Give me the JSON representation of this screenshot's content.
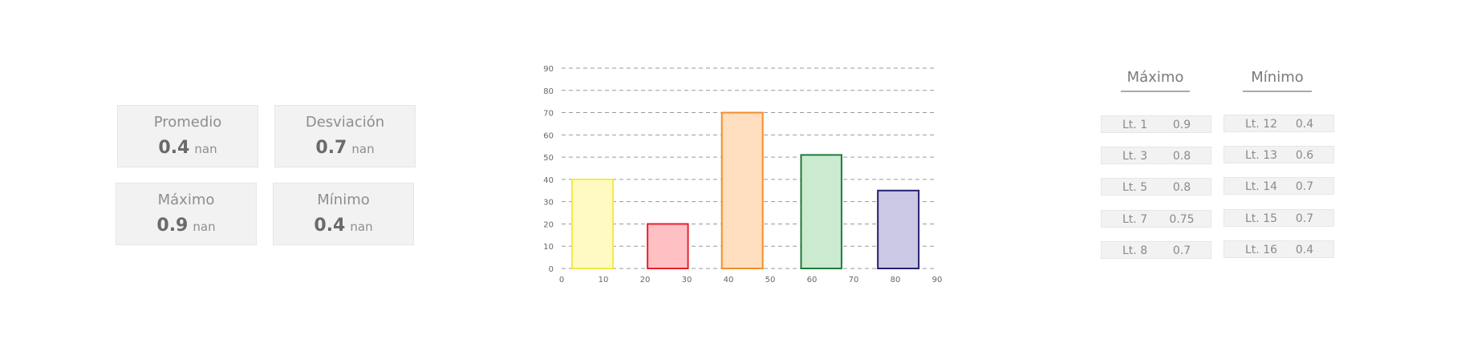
{
  "stats": [
    {
      "label": "Promedio",
      "value": "0.4",
      "unit": "nan"
    },
    {
      "label": "Desviación",
      "value": "0.7",
      "unit": "nan"
    },
    {
      "label": "Máximo",
      "value": "0.9",
      "unit": "nan"
    },
    {
      "label": "Mínimo",
      "value": "0.4",
      "unit": "nan"
    }
  ],
  "chart_data": {
    "type": "bar",
    "title": "",
    "xlabel": "",
    "ylabel": "",
    "xlim": [
      0,
      90
    ],
    "ylim": [
      0,
      90
    ],
    "xticks": [
      0,
      10,
      20,
      30,
      40,
      50,
      60,
      70,
      80,
      90
    ],
    "yticks": [
      0,
      10,
      20,
      30,
      40,
      50,
      60,
      70,
      80,
      90
    ],
    "grid": "horizontal-dashed",
    "bars": [
      {
        "x0": 2.5,
        "x1": 12.3,
        "value": 40,
        "fill": "#fffac4",
        "stroke": "#f5e94a"
      },
      {
        "x0": 20.6,
        "x1": 30.3,
        "value": 20,
        "fill": "#ffc0c4",
        "stroke": "#e8202b"
      },
      {
        "x0": 38.4,
        "x1": 48.2,
        "value": 70,
        "fill": "#ffdfbf",
        "stroke": "#f28e2b"
      },
      {
        "x0": 57.4,
        "x1": 67.1,
        "value": 51,
        "fill": "#cbebd0",
        "stroke": "#1f7a3a"
      },
      {
        "x0": 75.8,
        "x1": 85.6,
        "value": 35,
        "fill": "#cac8e4",
        "stroke": "#232070"
      }
    ]
  },
  "maximos": {
    "header": "Máximo",
    "rows": [
      {
        "lot": "Lt. 1",
        "value": "0.9"
      },
      {
        "lot": "Lt. 3",
        "value": "0.8"
      },
      {
        "lot": "Lt. 5",
        "value": "0.8"
      },
      {
        "lot": "Lt. 7",
        "value": "0.75"
      },
      {
        "lot": "Lt. 8",
        "value": "0.7"
      }
    ]
  },
  "minimos": {
    "header": "Mínimo",
    "rows": [
      {
        "lot": "Lt. 12",
        "value": "0.4"
      },
      {
        "lot": "Lt. 13",
        "value": "0.6"
      },
      {
        "lot": "Lt. 14",
        "value": "0.7"
      },
      {
        "lot": "Lt. 15",
        "value": "0.7"
      },
      {
        "lot": "Lt. 16",
        "value": "0.4"
      }
    ]
  }
}
